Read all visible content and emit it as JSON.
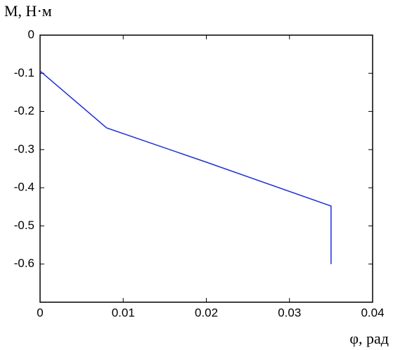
{
  "chart_data": {
    "type": "line",
    "y_label": "M, Н·м",
    "x_label": "φ, рад",
    "x": [
      0,
      0.008,
      0.02,
      0.035,
      0.035
    ],
    "series": [
      {
        "color": "#1f2fd6",
        "values": [
          -0.094,
          -0.243,
          -0.333,
          -0.448,
          -0.6
        ]
      }
    ],
    "xlim": [
      0,
      0.04
    ],
    "xticks": [
      0,
      0.01,
      0.02,
      0.03,
      0.04
    ],
    "ylim": [
      -0.7,
      0
    ],
    "yticks": [
      0,
      -0.1,
      -0.2,
      -0.3,
      -0.4,
      -0.5,
      -0.6
    ],
    "grid": false
  }
}
